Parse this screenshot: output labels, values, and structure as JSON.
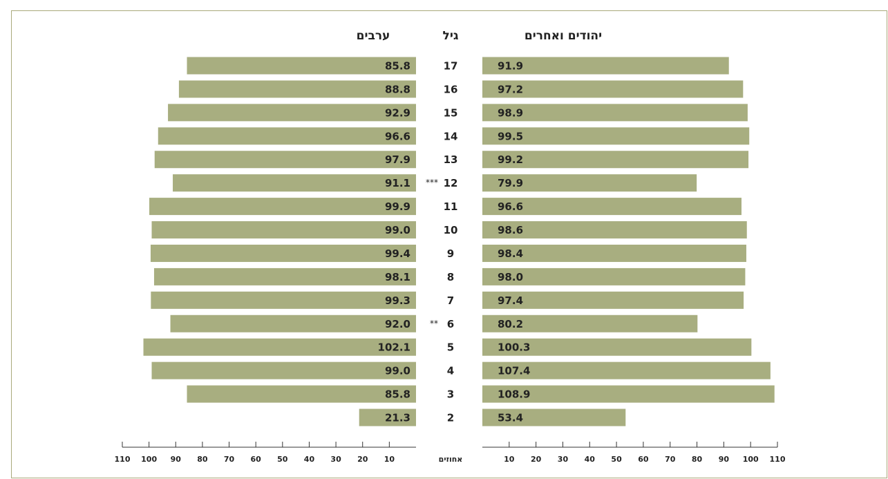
{
  "chart_data": {
    "type": "butterfly-bar",
    "category_header": "גיל",
    "categories": [
      "17",
      "16",
      "15",
      "14",
      "13",
      "12",
      "11",
      "10",
      "9",
      "8",
      "7",
      "6",
      "5",
      "4",
      "3",
      "2"
    ],
    "category_marks": [
      null,
      null,
      null,
      null,
      null,
      "***",
      null,
      null,
      null,
      null,
      null,
      "**",
      null,
      null,
      null,
      null
    ],
    "series": [
      {
        "name": "ערבים",
        "side": "left",
        "color": "#a8ae80",
        "values": [
          85.8,
          88.8,
          92.9,
          96.6,
          97.9,
          91.1,
          99.9,
          99.0,
          99.4,
          98.1,
          99.3,
          92.0,
          102.1,
          99.0,
          85.8,
          21.3
        ],
        "value_labels": [
          "85.8",
          "88.8",
          "92.9",
          "96.6",
          "97.9",
          "91.1",
          "99.9",
          "99.0",
          "99.4",
          "98.1",
          "99.3",
          "92.0",
          "102.1",
          "99.0",
          "85.8",
          "21.3"
        ]
      },
      {
        "name": "יהודים ואחרים",
        "side": "right",
        "color": "#a8ae80",
        "values": [
          91.9,
          97.2,
          98.9,
          99.5,
          99.2,
          79.9,
          96.6,
          98.6,
          98.4,
          98.0,
          97.4,
          80.2,
          100.3,
          107.4,
          108.9,
          53.4
        ],
        "value_labels": [
          "91.9",
          "97.2",
          "98.9",
          "99.5",
          "99.2",
          "79.9",
          "96.6",
          "98.6",
          "98.4",
          "98.0",
          "97.4",
          "80.2",
          "100.3",
          "107.4",
          "108.9",
          "53.4"
        ]
      }
    ],
    "xlabel": "אחוזים",
    "xlim": [
      0,
      110
    ],
    "xticks": [
      10,
      20,
      30,
      40,
      50,
      60,
      70,
      80,
      90,
      100,
      110
    ]
  }
}
